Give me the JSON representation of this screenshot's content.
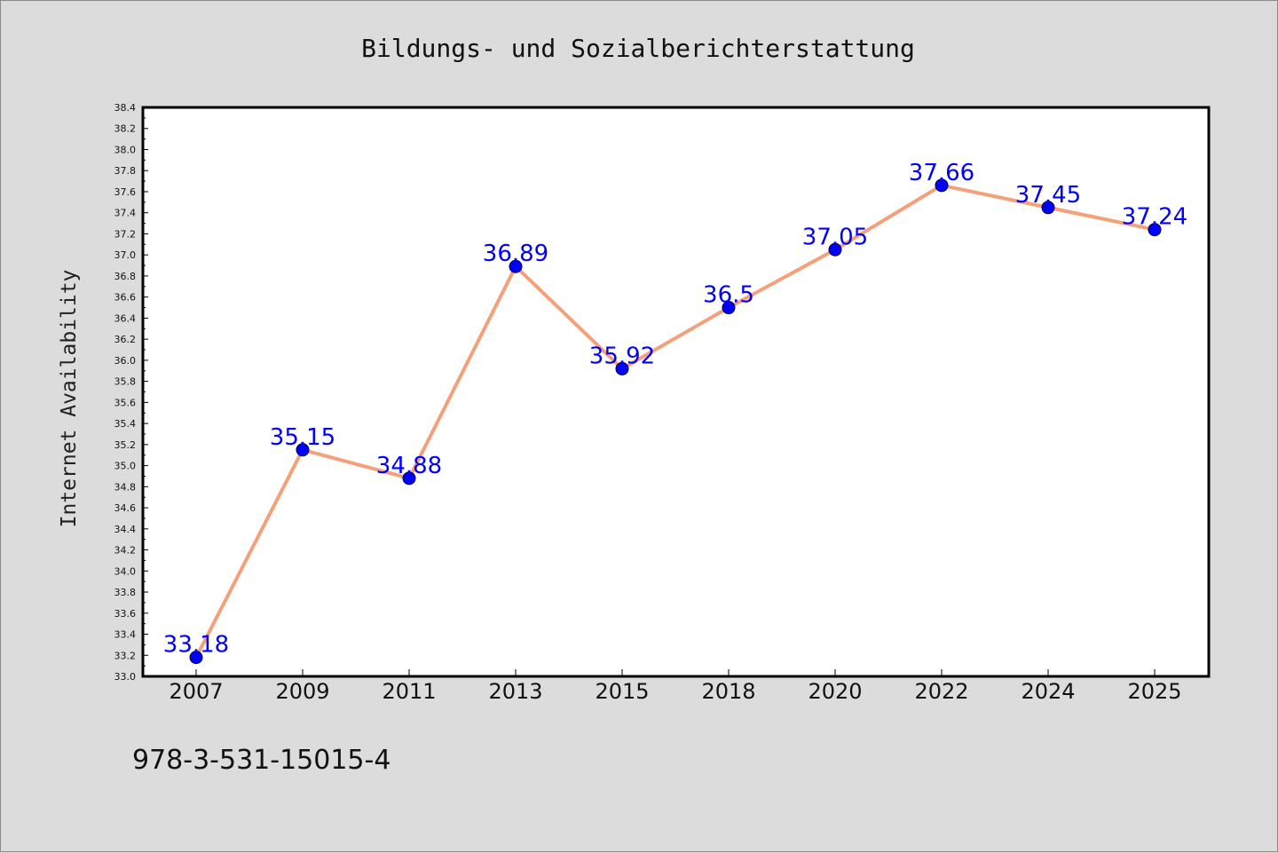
{
  "chart_data": {
    "type": "line",
    "title": "Bildungs- und Sozialberichterstattung",
    "xlabel": "",
    "ylabel": "Internet Availability",
    "categories": [
      "2007",
      "2009",
      "2011",
      "2013",
      "2015",
      "2018",
      "2020",
      "2022",
      "2024",
      "2025"
    ],
    "series": [
      {
        "values": [
          33.18,
          35.15,
          34.88,
          36.89,
          35.92,
          36.5,
          37.05,
          37.66,
          37.45,
          37.24
        ],
        "data_labels": [
          "33.18",
          "35.15",
          "34.88",
          "36.89",
          "35.92",
          "36.5",
          "37.05",
          "37.66",
          "37.45",
          "37.24"
        ]
      }
    ],
    "ylim": [
      33.0,
      38.4
    ],
    "y_ticks": [
      "33.0",
      "33.2",
      "33.4",
      "33.6",
      "33.8",
      "34.0",
      "34.2",
      "34.4",
      "34.6",
      "34.8",
      "35.0",
      "35.2",
      "35.4",
      "35.6",
      "35.8",
      "36.0",
      "36.2",
      "36.4",
      "36.6",
      "36.8",
      "37.0",
      "37.2",
      "37.4",
      "37.6",
      "37.8",
      "38.0",
      "38.2",
      "38.4"
    ],
    "grid": false,
    "legend": "none",
    "colors": {
      "line": "#f4a07a",
      "marker": "#0000ff",
      "data_label": "#0000ff",
      "background": "#dcdcdc",
      "plot_background": "#ffffff"
    }
  },
  "footer": {
    "isbn": "978-3-531-15015-4"
  }
}
